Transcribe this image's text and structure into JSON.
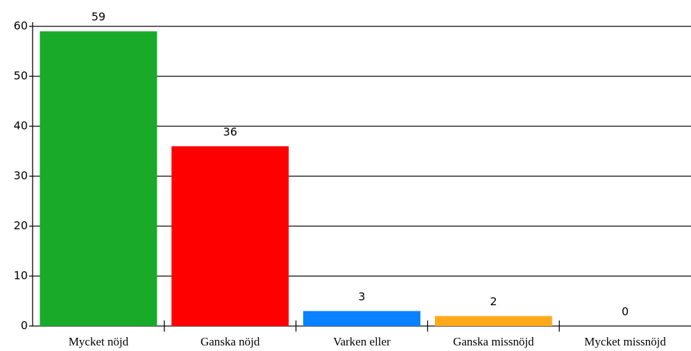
{
  "chart_data": {
    "type": "bar",
    "categories": [
      "Mycket nöjd",
      "Ganska nöjd",
      "Varken eller",
      "Ganska missnöjd",
      "Mycket missnöjd"
    ],
    "values": [
      59,
      36,
      3,
      2,
      0
    ],
    "colors": [
      "#1aaa2a",
      "#ff0000",
      "#0a82ff",
      "#ffaa1a",
      "#888888"
    ],
    "ylim": [
      0,
      60
    ],
    "yticks": [
      0,
      10,
      20,
      30,
      40,
      50,
      60
    ],
    "grid": true
  }
}
